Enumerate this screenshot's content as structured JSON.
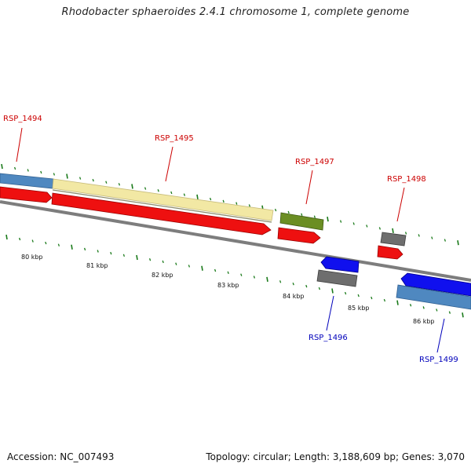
{
  "title": "Rhodobacter sphaeroides 2.4.1 chromosome 1, complete genome",
  "footer": {
    "accession": "Accession: NC_007493",
    "summary": "Topology: circular; Length: 3,188,609 bp; Genes: 3,070"
  },
  "colors": {
    "backbone": "#7a7a7a",
    "tick": "#1a7a1a",
    "label_top": "#cc0000",
    "label_bottom": "#0000bb",
    "steel_blue": "#4f88c0",
    "cream": "#f0e6a0",
    "red": "#ee0000",
    "olive": "#6b8e23",
    "gray": "#666666",
    "blue": "#0000ee"
  },
  "gene_labels": [
    {
      "id": "RSP_1494",
      "side": "top"
    },
    {
      "id": "RSP_1495",
      "side": "top"
    },
    {
      "id": "RSP_1497",
      "side": "top"
    },
    {
      "id": "RSP_1498",
      "side": "top"
    },
    {
      "id": "RSP_1496",
      "side": "bottom"
    },
    {
      "id": "RSP_1499",
      "side": "bottom"
    }
  ],
  "scale_labels": [
    "80 kbp",
    "81 kbp",
    "82 kbp",
    "83 kbp",
    "84 kbp",
    "85 kbp",
    "86 kbp"
  ]
}
